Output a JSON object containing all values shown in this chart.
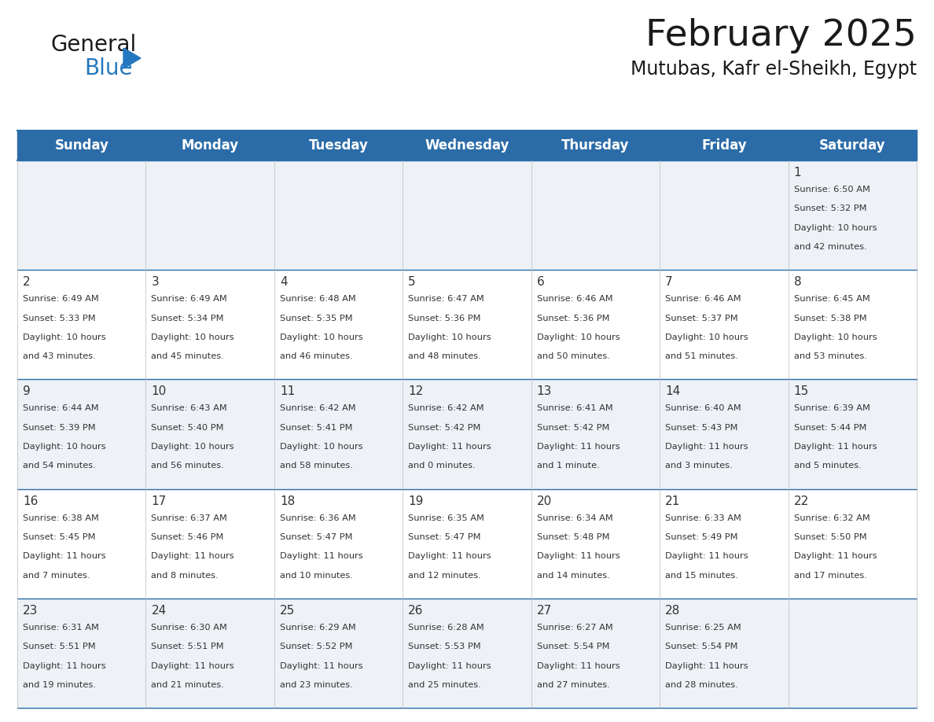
{
  "title": "February 2025",
  "subtitle": "Mutubas, Kafr el-Sheikh, Egypt",
  "header_bg": "#2b6ca8",
  "header_text_color": "#ffffff",
  "row_bg_odd": "#eef2f7",
  "row_bg_even": "#ffffff",
  "text_color": "#333333",
  "line_color": "#2b6ca8",
  "logo_color_general": "#1a1a1a",
  "logo_color_blue": "#2478bf",
  "logo_triangle_color": "#2478bf",
  "title_color": "#1a1a1a",
  "subtitle_color": "#1a1a1a",
  "day_names": [
    "Sunday",
    "Monday",
    "Tuesday",
    "Wednesday",
    "Thursday",
    "Friday",
    "Saturday"
  ],
  "days": [
    {
      "day": 1,
      "col": 6,
      "row": 0,
      "sunrise": "6:50 AM",
      "sunset": "5:32 PM",
      "daylight_h": "10 hours",
      "daylight_m": "42 minutes."
    },
    {
      "day": 2,
      "col": 0,
      "row": 1,
      "sunrise": "6:49 AM",
      "sunset": "5:33 PM",
      "daylight_h": "10 hours",
      "daylight_m": "43 minutes."
    },
    {
      "day": 3,
      "col": 1,
      "row": 1,
      "sunrise": "6:49 AM",
      "sunset": "5:34 PM",
      "daylight_h": "10 hours",
      "daylight_m": "45 minutes."
    },
    {
      "day": 4,
      "col": 2,
      "row": 1,
      "sunrise": "6:48 AM",
      "sunset": "5:35 PM",
      "daylight_h": "10 hours",
      "daylight_m": "46 minutes."
    },
    {
      "day": 5,
      "col": 3,
      "row": 1,
      "sunrise": "6:47 AM",
      "sunset": "5:36 PM",
      "daylight_h": "10 hours",
      "daylight_m": "48 minutes."
    },
    {
      "day": 6,
      "col": 4,
      "row": 1,
      "sunrise": "6:46 AM",
      "sunset": "5:36 PM",
      "daylight_h": "10 hours",
      "daylight_m": "50 minutes."
    },
    {
      "day": 7,
      "col": 5,
      "row": 1,
      "sunrise": "6:46 AM",
      "sunset": "5:37 PM",
      "daylight_h": "10 hours",
      "daylight_m": "51 minutes."
    },
    {
      "day": 8,
      "col": 6,
      "row": 1,
      "sunrise": "6:45 AM",
      "sunset": "5:38 PM",
      "daylight_h": "10 hours",
      "daylight_m": "53 minutes."
    },
    {
      "day": 9,
      "col": 0,
      "row": 2,
      "sunrise": "6:44 AM",
      "sunset": "5:39 PM",
      "daylight_h": "10 hours",
      "daylight_m": "54 minutes."
    },
    {
      "day": 10,
      "col": 1,
      "row": 2,
      "sunrise": "6:43 AM",
      "sunset": "5:40 PM",
      "daylight_h": "10 hours",
      "daylight_m": "56 minutes."
    },
    {
      "day": 11,
      "col": 2,
      "row": 2,
      "sunrise": "6:42 AM",
      "sunset": "5:41 PM",
      "daylight_h": "10 hours",
      "daylight_m": "58 minutes."
    },
    {
      "day": 12,
      "col": 3,
      "row": 2,
      "sunrise": "6:42 AM",
      "sunset": "5:42 PM",
      "daylight_h": "11 hours",
      "daylight_m": "0 minutes."
    },
    {
      "day": 13,
      "col": 4,
      "row": 2,
      "sunrise": "6:41 AM",
      "sunset": "5:42 PM",
      "daylight_h": "11 hours",
      "daylight_m": "1 minute."
    },
    {
      "day": 14,
      "col": 5,
      "row": 2,
      "sunrise": "6:40 AM",
      "sunset": "5:43 PM",
      "daylight_h": "11 hours",
      "daylight_m": "3 minutes."
    },
    {
      "day": 15,
      "col": 6,
      "row": 2,
      "sunrise": "6:39 AM",
      "sunset": "5:44 PM",
      "daylight_h": "11 hours",
      "daylight_m": "5 minutes."
    },
    {
      "day": 16,
      "col": 0,
      "row": 3,
      "sunrise": "6:38 AM",
      "sunset": "5:45 PM",
      "daylight_h": "11 hours",
      "daylight_m": "7 minutes."
    },
    {
      "day": 17,
      "col": 1,
      "row": 3,
      "sunrise": "6:37 AM",
      "sunset": "5:46 PM",
      "daylight_h": "11 hours",
      "daylight_m": "8 minutes."
    },
    {
      "day": 18,
      "col": 2,
      "row": 3,
      "sunrise": "6:36 AM",
      "sunset": "5:47 PM",
      "daylight_h": "11 hours",
      "daylight_m": "10 minutes."
    },
    {
      "day": 19,
      "col": 3,
      "row": 3,
      "sunrise": "6:35 AM",
      "sunset": "5:47 PM",
      "daylight_h": "11 hours",
      "daylight_m": "12 minutes."
    },
    {
      "day": 20,
      "col": 4,
      "row": 3,
      "sunrise": "6:34 AM",
      "sunset": "5:48 PM",
      "daylight_h": "11 hours",
      "daylight_m": "14 minutes."
    },
    {
      "day": 21,
      "col": 5,
      "row": 3,
      "sunrise": "6:33 AM",
      "sunset": "5:49 PM",
      "daylight_h": "11 hours",
      "daylight_m": "15 minutes."
    },
    {
      "day": 22,
      "col": 6,
      "row": 3,
      "sunrise": "6:32 AM",
      "sunset": "5:50 PM",
      "daylight_h": "11 hours",
      "daylight_m": "17 minutes."
    },
    {
      "day": 23,
      "col": 0,
      "row": 4,
      "sunrise": "6:31 AM",
      "sunset": "5:51 PM",
      "daylight_h": "11 hours",
      "daylight_m": "19 minutes."
    },
    {
      "day": 24,
      "col": 1,
      "row": 4,
      "sunrise": "6:30 AM",
      "sunset": "5:51 PM",
      "daylight_h": "11 hours",
      "daylight_m": "21 minutes."
    },
    {
      "day": 25,
      "col": 2,
      "row": 4,
      "sunrise": "6:29 AM",
      "sunset": "5:52 PM",
      "daylight_h": "11 hours",
      "daylight_m": "23 minutes."
    },
    {
      "day": 26,
      "col": 3,
      "row": 4,
      "sunrise": "6:28 AM",
      "sunset": "5:53 PM",
      "daylight_h": "11 hours",
      "daylight_m": "25 minutes."
    },
    {
      "day": 27,
      "col": 4,
      "row": 4,
      "sunrise": "6:27 AM",
      "sunset": "5:54 PM",
      "daylight_h": "11 hours",
      "daylight_m": "27 minutes."
    },
    {
      "day": 28,
      "col": 5,
      "row": 4,
      "sunrise": "6:25 AM",
      "sunset": "5:54 PM",
      "daylight_h": "11 hours",
      "daylight_m": "28 minutes."
    }
  ]
}
